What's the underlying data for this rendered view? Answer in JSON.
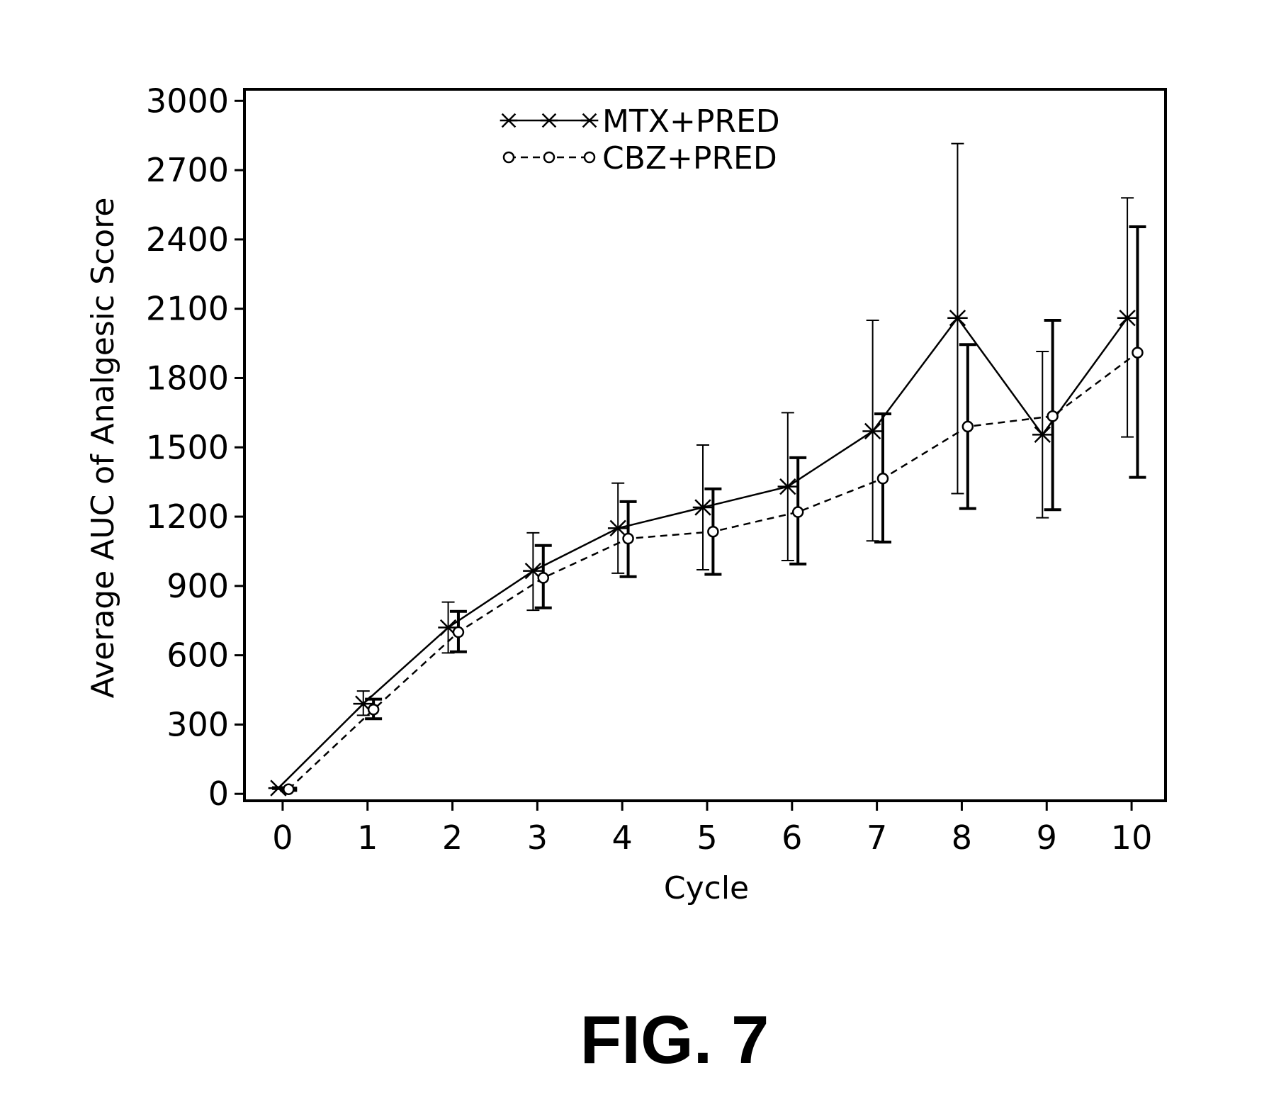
{
  "figure_label": "FIG. 7",
  "chart_data": {
    "type": "line",
    "title": "",
    "xlabel": "Cycle",
    "ylabel": "Average AUC of Analgesic Score",
    "xlim": [
      -0.45,
      10.4
    ],
    "ylim": [
      -30,
      3050
    ],
    "xticks": [
      0,
      1,
      2,
      3,
      4,
      5,
      6,
      7,
      8,
      9,
      10
    ],
    "yticks": [
      0,
      300,
      600,
      900,
      1200,
      1500,
      1800,
      2100,
      2400,
      2700,
      3000
    ],
    "grid": false,
    "legend_position": "top-center",
    "error_bars": true,
    "x": [
      0,
      1,
      2,
      3,
      4,
      5,
      6,
      7,
      8,
      9,
      10
    ],
    "series": [
      {
        "name": "MTX+PRED",
        "marker": "star",
        "line_style": "solid",
        "values": [
          25,
          390,
          720,
          965,
          1150,
          1240,
          1330,
          1570,
          2060,
          1555,
          2060
        ],
        "error_low": [
          20,
          340,
          610,
          795,
          955,
          970,
          1010,
          1095,
          1300,
          1195,
          1545
        ],
        "error_high": [
          30,
          445,
          830,
          1130,
          1345,
          1510,
          1650,
          2050,
          2815,
          1915,
          2580
        ]
      },
      {
        "name": "CBZ+PRED",
        "marker": "circle",
        "line_style": "dashed",
        "values": [
          20,
          365,
          700,
          935,
          1105,
          1135,
          1220,
          1365,
          1590,
          1635,
          1910
        ],
        "error_low": [
          15,
          325,
          615,
          805,
          940,
          950,
          995,
          1090,
          1235,
          1230,
          1370
        ],
        "error_high": [
          25,
          410,
          790,
          1075,
          1265,
          1320,
          1455,
          1645,
          1945,
          2050,
          2455
        ]
      }
    ]
  }
}
